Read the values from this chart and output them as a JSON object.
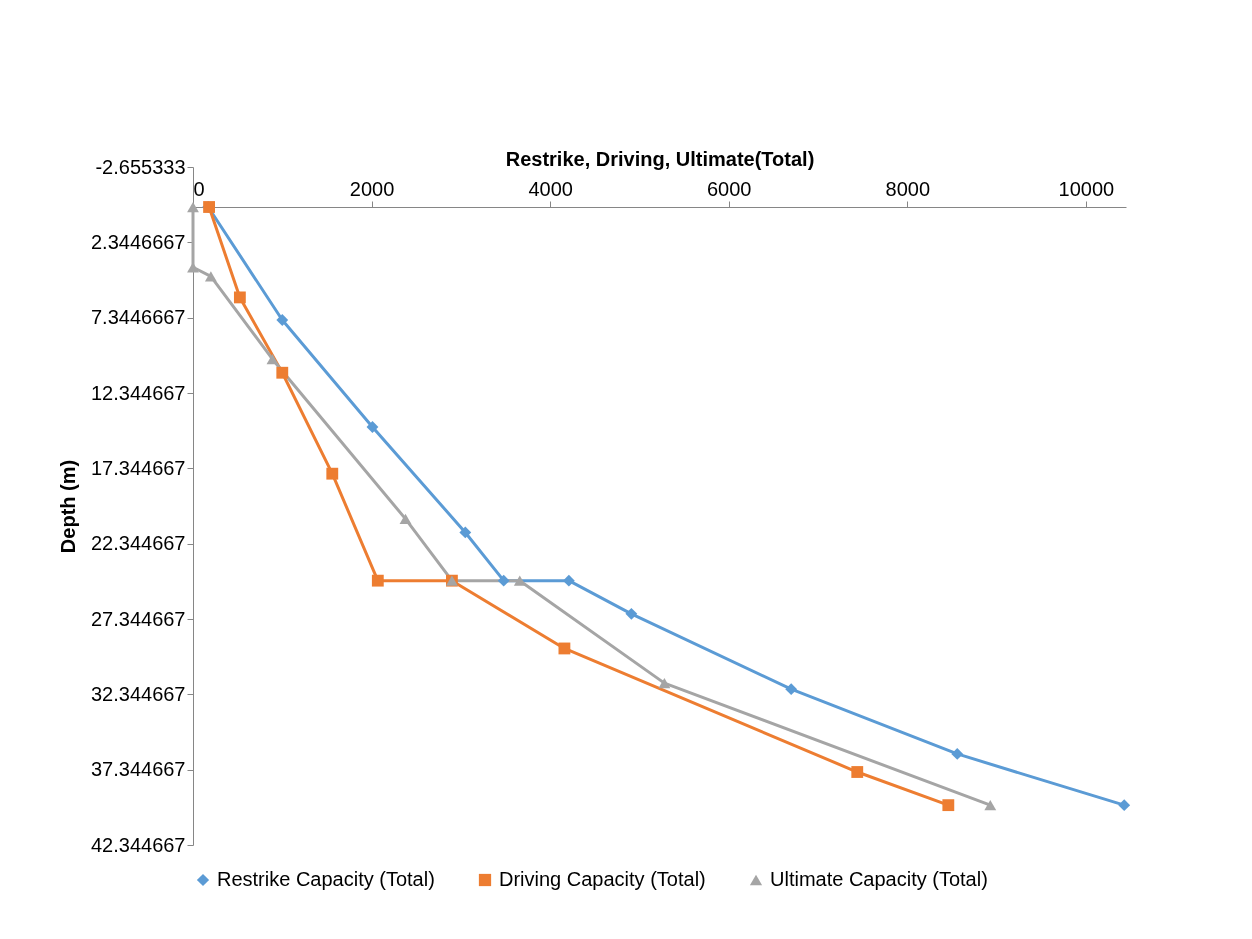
{
  "chart_data": {
    "type": "line",
    "xlabel": "Restrike, Driving, Ultimate(Total)",
    "ylabel": "Depth (m)",
    "xlim": [
      0,
      10450
    ],
    "xticks": [
      0,
      2000,
      4000,
      6000,
      8000,
      10000
    ],
    "ylim": [
      42.344667,
      -2.655333
    ],
    "yticks": [
      -2.655333,
      2.3446667,
      7.3446667,
      12.344667,
      17.344667,
      22.344667,
      27.344667,
      32.344667,
      37.344667,
      42.344667
    ],
    "grid": false,
    "legend": "bottom",
    "line_style": "solid",
    "series": [
      {
        "name": "Restrike Capacity (Total)",
        "color": "#5b9bd5",
        "marker": "diamond",
        "x": [
          170,
          1000,
          2010,
          3050,
          3480,
          4210,
          4910,
          6700,
          8560,
          10430
        ],
        "values": [
          0,
          7.5,
          14.6,
          21.6,
          24.8,
          24.8,
          27,
          32,
          36.3,
          39.7
        ]
      },
      {
        "name": "Driving Capacity (Total)",
        "color": "#ed7d31",
        "marker": "square",
        "x": [
          180,
          525,
          1000,
          1560,
          2070,
          2900,
          4160,
          7440,
          8460
        ],
        "values": [
          0,
          6,
          11,
          17.7,
          24.8,
          24.8,
          29.3,
          37.5,
          39.7
        ]
      },
      {
        "name": "Ultimate Capacity (Total)",
        "color": "#a5a5a5",
        "marker": "triangle",
        "x": [
          0,
          0,
          200,
          890,
          2380,
          2900,
          3660,
          5280,
          8930
        ],
        "values": [
          0,
          4,
          4.6,
          10.1,
          20.7,
          24.8,
          24.8,
          31.6,
          39.7
        ]
      }
    ]
  }
}
